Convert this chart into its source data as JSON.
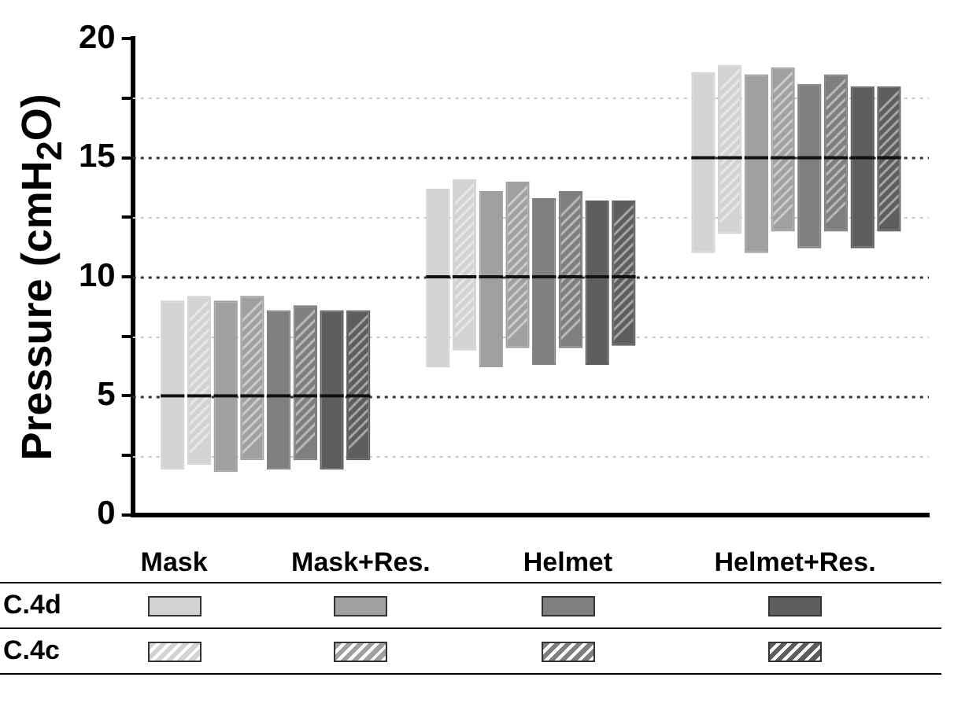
{
  "chart_data": {
    "type": "box",
    "ylabel": "Pressure (cmH$_{2}$O)",
    "categories": [
      null,
      null,
      null
    ],
    "series": [
      {
        "color": "#d3d3d3",
        "boxes": [
          {
            "low": 1.9,
            "q1": 1.9,
            "median": 5,
            "q3": 9.0,
            "high": 9.0
          },
          {
            "low": 6.2,
            "q1": 6.2,
            "median": 10,
            "q3": 13.7,
            "high": 13.7
          },
          {
            "low": 11.0,
            "q1": 11.0,
            "median": 15,
            "q3": 18.6,
            "high": 18.6
          }
        ]
      },
      {
        "color": "#d3d3d3",
        "boxes": [
          {
            "low": 2.1,
            "q1": 2.1,
            "median": 5,
            "q3": 9.2,
            "high": 9.2
          },
          {
            "low": 6.9,
            "q1": 6.9,
            "median": 10,
            "q3": 14.1,
            "high": 14.1
          },
          {
            "low": 11.8,
            "q1": 11.8,
            "median": 15,
            "q3": 18.9,
            "high": 18.9
          }
        ]
      },
      {
        "color": "#a0a0a0",
        "boxes": [
          {
            "low": 1.8,
            "q1": 1.8,
            "median": 5,
            "q3": 9.0,
            "high": 9.0
          },
          {
            "low": 6.2,
            "q1": 6.2,
            "median": 10,
            "q3": 13.6,
            "high": 13.6
          },
          {
            "low": 11.0,
            "q1": 11.0,
            "median": 15,
            "q3": 18.5,
            "high": 18.5
          }
        ]
      },
      {
        "color": "#a0a0a0",
        "boxes": [
          {
            "low": 2.3,
            "q1": 2.3,
            "median": 5,
            "q3": 9.2,
            "high": 9.2
          },
          {
            "low": 7.0,
            "q1": 7.0,
            "median": 10,
            "q3": 14.0,
            "high": 14.0
          },
          {
            "low": 11.9,
            "q1": 11.9,
            "median": 15,
            "q3": 18.8,
            "high": 18.8
          }
        ]
      },
      {
        "color": "#7f7f7f",
        "boxes": [
          {
            "low": 1.9,
            "q1": 1.9,
            "median": 5,
            "q3": 8.6,
            "high": 8.6
          },
          {
            "low": 6.3,
            "q1": 6.3,
            "median": 10,
            "q3": 13.3,
            "high": 13.3
          },
          {
            "low": 11.2,
            "q1": 11.2,
            "median": 15,
            "q3": 18.1,
            "high": 18.1
          }
        ]
      },
      {
        "color": "#7f7f7f",
        "boxes": [
          {
            "low": 2.3,
            "q1": 2.3,
            "median": 5,
            "q3": 8.8,
            "high": 8.8
          },
          {
            "low": 7.0,
            "q1": 7.0,
            "median": 10,
            "q3": 13.6,
            "high": 13.6
          },
          {
            "low": 11.9,
            "q1": 11.9,
            "median": 15,
            "q3": 18.5,
            "high": 18.5
          }
        ]
      },
      {
        "color": "#5e5e5e",
        "boxes": [
          {
            "low": 1.9,
            "q1": 1.9,
            "median": 5,
            "q3": 8.6,
            "high": 8.6
          },
          {
            "low": 6.3,
            "q1": 6.3,
            "median": 10,
            "q3": 13.2,
            "high": 13.2
          },
          {
            "low": 11.2,
            "q1": 11.2,
            "median": 15,
            "q3": 18.0,
            "high": 18.0
          }
        ]
      },
      {
        "color": "#5e5e5e",
        "boxes": [
          {
            "low": 2.3,
            "q1": 2.3,
            "median": 5,
            "q3": 8.6,
            "high": 8.6
          },
          {
            "low": 7.1,
            "q1": 7.1,
            "median": 10,
            "q3": 13.2,
            "high": 13.2
          },
          {
            "low": 11.9,
            "q1": 11.9,
            "median": 15,
            "q3": 18.0,
            "high": 18.0
          }
        ]
      }
    ],
    "annotations": [
      "Mask",
      "Mask+Res.",
      "Helmet",
      "Helmet+Res.",
      "C.4d",
      "C.4c"
    ],
    "ylim": [
      0,
      20
    ],
    "yticks": [
      0,
      {
        "value": 2.5,
        "label": null
      },
      5,
      {
        "value": 7.5,
        "label": null
      },
      10,
      {
        "value": 12.5,
        "label": null
      },
      15,
      {
        "value": 17.5,
        "label": null
      },
      20
    ],
    "grid": "y"
  }
}
